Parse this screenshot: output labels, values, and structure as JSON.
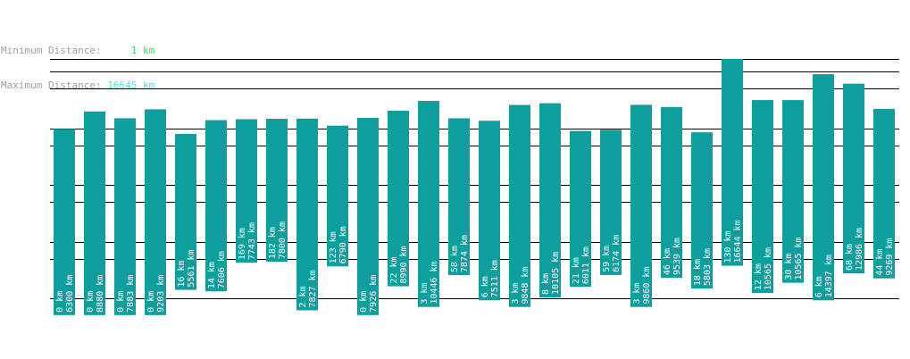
{
  "stats": {
    "min_label": "Minimum Distance:",
    "min_value": "1 km",
    "max_label": "Maximum Distance:",
    "max_value": "16645 km"
  },
  "colors": {
    "bar": "#0f9e9e",
    "min_value": "#33dd55",
    "max_value": "#55dddd",
    "label_text": "#ffffff"
  },
  "chart_data": {
    "type": "bar",
    "ylim": [
      0,
      16645
    ],
    "bars": [
      {
        "label": "0 km",
        "value": 6300,
        "sub": 0
      },
      {
        "label": "0 km",
        "value": 8880,
        "sub": 0
      },
      {
        "label": "0 km",
        "value": 7883,
        "sub": 0
      },
      {
        "label": "0 km",
        "value": 9203,
        "sub": 0
      },
      {
        "label": "16 km",
        "value": 5561,
        "sub": 16
      },
      {
        "label": "14 km",
        "value": 7606,
        "sub": 14
      },
      {
        "label": "169 km",
        "value": 7743,
        "sub": 169
      },
      {
        "label": "182 km",
        "value": 7800,
        "sub": 182
      },
      {
        "label": "2 km",
        "value": 7827,
        "sub": 2
      },
      {
        "label": "123 km",
        "value": 6790,
        "sub": 123
      },
      {
        "label": "0 km",
        "value": 7926,
        "sub": 0
      },
      {
        "label": "22 km",
        "value": 8990,
        "sub": 22
      },
      {
        "label": "3 km",
        "value": 10446,
        "sub": 3
      },
      {
        "label": "58 km",
        "value": 7874,
        "sub": 58
      },
      {
        "label": "6 km",
        "value": 7511,
        "sub": 6
      },
      {
        "label": "3 km",
        "value": 9848,
        "sub": 3
      },
      {
        "label": "8 km",
        "value": 10105,
        "sub": 8
      },
      {
        "label": "21 km",
        "value": 6011,
        "sub": 21
      },
      {
        "label": "59 km",
        "value": 6174,
        "sub": 59
      },
      {
        "label": "3 km",
        "value": 9860,
        "sub": 3
      },
      {
        "label": "46 km",
        "value": 9539,
        "sub": 46
      },
      {
        "label": "18 km",
        "value": 5803,
        "sub": 18
      },
      {
        "label": "130 km",
        "value": 16644,
        "sub": 130
      },
      {
        "label": "12 km",
        "value": 10565,
        "sub": 12
      },
      {
        "label": "30 km",
        "value": 10565,
        "sub": 30
      },
      {
        "label": "6 km",
        "value": 14397,
        "sub": 6
      },
      {
        "label": "68 km",
        "value": 12986,
        "sub": 68
      },
      {
        "label": "44 km",
        "value": 9269,
        "sub": 44
      }
    ],
    "reference_lines": [
      16645,
      10000,
      5000,
      1000,
      500,
      100,
      50,
      10,
      5,
      1
    ]
  }
}
